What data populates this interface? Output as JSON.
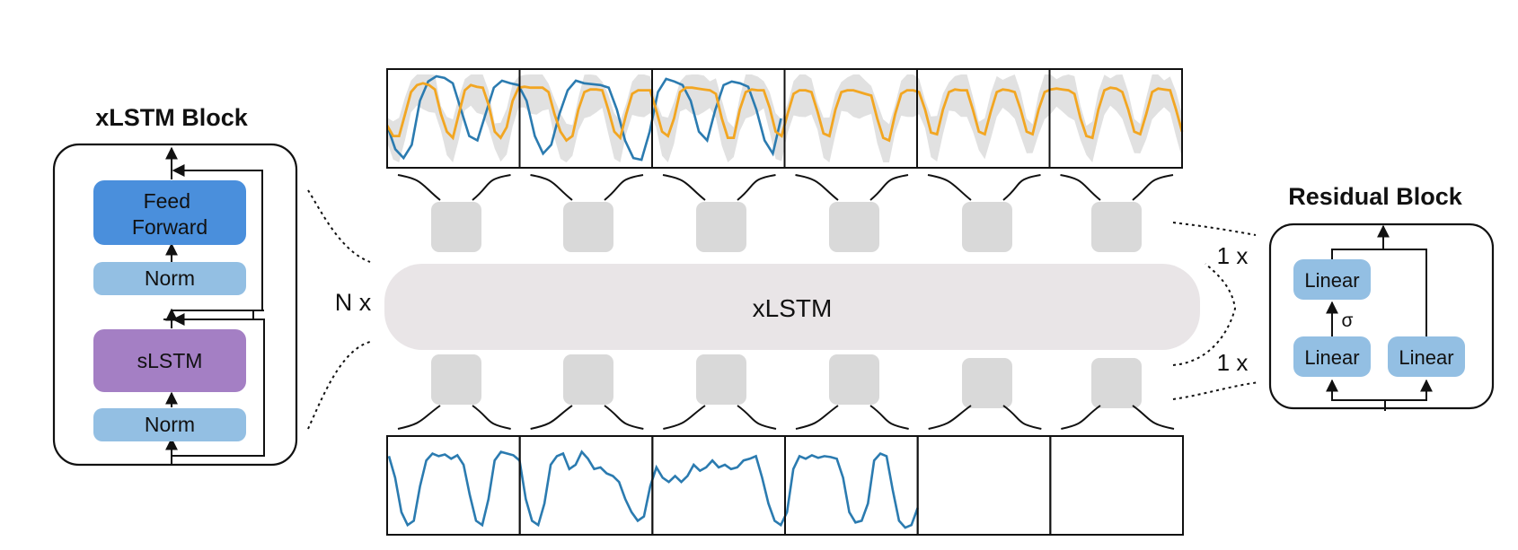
{
  "xlstm_block": {
    "title": "xLSTM Block",
    "feed_forward": "Feed Forward",
    "norm_top": "Norm",
    "slstm": "sLSTM",
    "norm_bottom": "Norm"
  },
  "center": {
    "xlstm_label": "xLSTM",
    "repeat_label": "N x"
  },
  "residual_block": {
    "title": "Residual Block",
    "linear_top": "Linear",
    "sigma": "σ",
    "linear_bottom_left": "Linear",
    "linear_bottom_right": "Linear",
    "repeat_top": "1 x",
    "repeat_bottom": "1 x"
  },
  "colors": {
    "feed_forward": "#4a8fdc",
    "norm": "#93bfe3",
    "slstm": "#a47fc4",
    "linear": "#93bfe3",
    "token": "#d9d9d9",
    "xlstm_bar": "#e9e5e7",
    "input_series": "#2b7bb0",
    "forecast_series": "#f2a622",
    "band": "#dcdcdc"
  },
  "chart_data": [
    {
      "type": "line",
      "title": "",
      "panels": 6,
      "series": [
        {
          "values": [
            0.42,
            0.15,
            0.05,
            0.2,
            0.7,
            0.92,
            0.98,
            0.96,
            0.9,
            0.6,
            0.3,
            0.25,
            0.55,
            0.85,
            0.93,
            0.9,
            0.88,
            0.7,
            0.3,
            0.1,
            0.2,
            0.55,
            0.82,
            0.93,
            0.9,
            0.89,
            0.88,
            0.85,
            0.6,
            0.25,
            0.05,
            0.03,
            0.35,
            0.8,
            0.95,
            0.92,
            0.88,
            0.7,
            0.35,
            0.25,
            0.6,
            0.88,
            0.92,
            0.9,
            0.86,
            0.6,
            0.25,
            0.1,
            0.5
          ]
        },
        {
          "values": [
            0.42,
            0.3,
            0.3,
            0.55,
            0.8,
            0.88,
            0.9,
            0.88,
            0.83,
            0.55,
            0.35,
            0.28,
            0.55,
            0.82,
            0.88,
            0.86,
            0.85,
            0.65,
            0.35,
            0.28,
            0.4,
            0.7,
            0.85,
            0.86,
            0.85,
            0.85,
            0.85,
            0.8,
            0.55,
            0.35,
            0.25,
            0.3,
            0.6,
            0.8,
            0.83,
            0.83,
            0.82,
            0.6,
            0.35,
            0.28,
            0.55,
            0.78,
            0.82,
            0.82,
            0.82,
            0.6,
            0.35,
            0.3,
            0.5,
            0.8,
            0.85,
            0.85,
            0.84,
            0.83,
            0.82,
            0.78,
            0.5,
            0.28,
            0.28,
            0.6,
            0.8,
            0.83,
            0.82,
            0.82,
            0.62,
            0.35,
            0.3,
            0.55,
            0.78,
            0.82,
            0.82,
            0.8,
            0.58,
            0.33,
            0.3,
            0.6,
            0.8,
            0.82,
            0.82,
            0.8,
            0.78,
            0.76,
            0.5,
            0.28,
            0.25,
            0.55,
            0.78,
            0.82,
            0.82,
            0.8,
            0.6,
            0.34,
            0.32,
            0.6,
            0.8,
            0.83,
            0.82,
            0.82,
            0.6,
            0.35,
            0.32,
            0.58,
            0.8,
            0.83,
            0.82,
            0.8,
            0.6,
            0.35,
            0.32,
            0.6,
            0.8,
            0.83,
            0.84,
            0.83,
            0.82,
            0.78,
            0.5,
            0.3,
            0.28,
            0.6,
            0.82,
            0.85,
            0.84,
            0.8,
            0.6,
            0.35,
            0.32,
            0.55,
            0.8,
            0.84,
            0.83,
            0.82,
            0.6,
            0.35
          ]
        }
      ]
    },
    {
      "type": "line",
      "title": "",
      "panels": 6,
      "series": [
        {
          "values": [
            0.85,
            0.6,
            0.2,
            0.05,
            0.1,
            0.5,
            0.8,
            0.88,
            0.85,
            0.87,
            0.82,
            0.86,
            0.75,
            0.4,
            0.1,
            0.05,
            0.35,
            0.8,
            0.9,
            0.88,
            0.86,
            0.8,
            0.35,
            0.1,
            0.05,
            0.3,
            0.75,
            0.85,
            0.88,
            0.7,
            0.75,
            0.9,
            0.82,
            0.7,
            0.72,
            0.65,
            0.62,
            0.55,
            0.35,
            0.2,
            0.1,
            0.15,
            0.5,
            0.72,
            0.6,
            0.55,
            0.62,
            0.55,
            0.62,
            0.75,
            0.68,
            0.72,
            0.8,
            0.72,
            0.75,
            0.7,
            0.72,
            0.8,
            0.82,
            0.85,
            0.6,
            0.3,
            0.1,
            0.05,
            0.2,
            0.7,
            0.85,
            0.82,
            0.86,
            0.83,
            0.85,
            0.84,
            0.82,
            0.6,
            0.2,
            0.08,
            0.1,
            0.3,
            0.8,
            0.88,
            0.85,
            0.45,
            0.1,
            0.02,
            0.05,
            0.25
          ]
        }
      ]
    }
  ]
}
